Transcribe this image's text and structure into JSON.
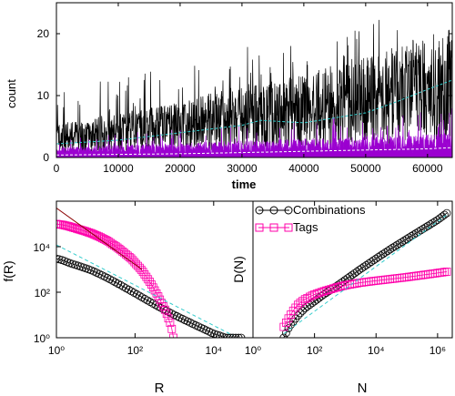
{
  "figure": {
    "background": "#ffffff"
  },
  "chart_data": [
    {
      "id": "time-series",
      "type": "line",
      "xlabel": "time",
      "ylabel": "count",
      "xlim": [
        0,
        64000
      ],
      "ylim": [
        0,
        25
      ],
      "x_ticks": [
        0,
        10000,
        20000,
        30000,
        40000,
        50000,
        60000
      ],
      "x_tick_labels": [
        "0",
        "10000",
        "20000",
        "30000",
        "40000",
        "50000",
        "60000"
      ],
      "y_ticks": [
        0,
        10,
        20
      ],
      "y_tick_labels": [
        "0",
        "10",
        "20"
      ],
      "grid": false,
      "series": [
        {
          "style": "black dotted, high-frequency",
          "color": "#000000",
          "envelope": {
            "x": [
              0,
              10000,
              20000,
              30000,
              40000,
              50000,
              60000,
              64000
            ],
            "mean": [
              3,
              4,
              5,
              6.5,
              7.5,
              9,
              11,
              12
            ],
            "peak": [
              11,
              13,
              15,
              18,
              19,
              22,
              25,
              25
            ]
          }
        },
        {
          "style": "purple filled, high-frequency",
          "color": "#9b00d0",
          "envelope": {
            "x": [
              0,
              10000,
              20000,
              30000,
              40000,
              50000,
              60000,
              64000
            ],
            "mean": [
              1,
              1.2,
              1.4,
              1.6,
              1.8,
              2,
              2.2,
              2.4
            ],
            "peak": [
              4,
              4.5,
              5,
              5.5,
              6,
              7,
              7.5,
              8
            ]
          }
        },
        {
          "style": "cyan dashed trend",
          "color": "#33cccc",
          "x": [
            0,
            10000,
            20000,
            30000,
            33000,
            40000,
            50000,
            55000,
            60000,
            64000
          ],
          "y": [
            2.2,
            2.8,
            4.0,
            5.2,
            6.0,
            5.6,
            7.2,
            9.0,
            11.0,
            12.5
          ]
        },
        {
          "style": "white dashed trend",
          "color": "#ffffff",
          "x": [
            0,
            10000,
            20000,
            30000,
            40000,
            50000,
            60000,
            64000
          ],
          "y": [
            0.4,
            0.5,
            0.6,
            0.8,
            1.0,
            1.2,
            1.4,
            1.6
          ]
        }
      ]
    },
    {
      "id": "rank-frequency",
      "type": "scatter",
      "xscale": "log",
      "yscale": "log",
      "xlabel": "R",
      "ylabel": "f(R)",
      "xlim": [
        1,
        100000
      ],
      "ylim": [
        1,
        1000000
      ],
      "x_ticks": [
        1,
        100,
        10000
      ],
      "x_tick_labels": [
        "10⁰",
        "10²",
        "10⁴"
      ],
      "y_ticks": [
        1,
        100,
        10000
      ],
      "y_tick_labels": [
        "10⁰",
        "10²",
        "10⁴"
      ],
      "grid": false,
      "series": [
        {
          "name": "Combinations",
          "marker": "circle",
          "color": "#000000",
          "x": [
            1,
            1.5,
            2,
            3,
            5,
            8,
            12,
            20,
            40,
            100,
            300,
            1000,
            3000,
            10000,
            15000,
            20000,
            30000,
            50000
          ],
          "y": [
            3000,
            2500,
            2000,
            1600,
            1200,
            900,
            650,
            420,
            220,
            90,
            30,
            10,
            4,
            1.5,
            1.2,
            1.0,
            1.0,
            1.0
          ]
        },
        {
          "name": "Tags",
          "marker": "square",
          "color": "#ff00aa",
          "x": [
            1,
            1.5,
            2,
            3,
            5,
            8,
            12,
            20,
            40,
            80,
            150,
            250,
            400,
            600,
            800,
            900,
            950
          ],
          "y": [
            100000,
            90000,
            80000,
            65000,
            50000,
            38000,
            28000,
            18000,
            8000,
            3000,
            900,
            250,
            60,
            15,
            4,
            1.8,
            1.0
          ]
        }
      ],
      "fits": [
        {
          "color": "#33cccc",
          "style": "dashed",
          "x": [
            1,
            30000
          ],
          "y": [
            12000,
            1.3
          ]
        },
        {
          "color": "#8b0000",
          "style": "solid",
          "x": [
            1,
            150
          ],
          "y": [
            500000,
            1000
          ]
        }
      ]
    },
    {
      "id": "growth",
      "type": "scatter",
      "xscale": "log",
      "yscale": "log",
      "xlabel": "N",
      "ylabel": "D(N)",
      "xlim": [
        1,
        3000000
      ],
      "ylim": [
        1,
        1000000
      ],
      "x_ticks": [
        1,
        100,
        10000,
        1000000
      ],
      "x_tick_labels": [
        "10⁰",
        "10²",
        "10⁴",
        "10⁶"
      ],
      "grid": false,
      "legend_placement": "top-left",
      "series": [
        {
          "name": "Combinations",
          "marker": "circle",
          "color": "#000000",
          "x": [
            10,
            15,
            20,
            30,
            50,
            100,
            200,
            500,
            1000,
            3000,
            10000,
            30000,
            100000,
            300000,
            1000000,
            2000000
          ],
          "y": [
            1,
            3,
            5,
            10,
            20,
            40,
            80,
            180,
            350,
            1000,
            3000,
            8000,
            22000,
            55000,
            150000,
            300000
          ]
        },
        {
          "name": "Tags",
          "marker": "square",
          "color": "#ff00aa",
          "x": [
            10,
            15,
            20,
            30,
            50,
            100,
            200,
            500,
            1000,
            3000,
            10000,
            30000,
            100000,
            300000,
            1000000,
            2000000
          ],
          "y": [
            3,
            8,
            15,
            30,
            50,
            80,
            110,
            160,
            200,
            260,
            320,
            380,
            460,
            560,
            700,
            800
          ]
        }
      ],
      "fits": [
        {
          "color": "#33cccc",
          "style": "dashed",
          "x": [
            10,
            2000000
          ],
          "y": [
            1.5,
            250000
          ]
        }
      ]
    }
  ]
}
